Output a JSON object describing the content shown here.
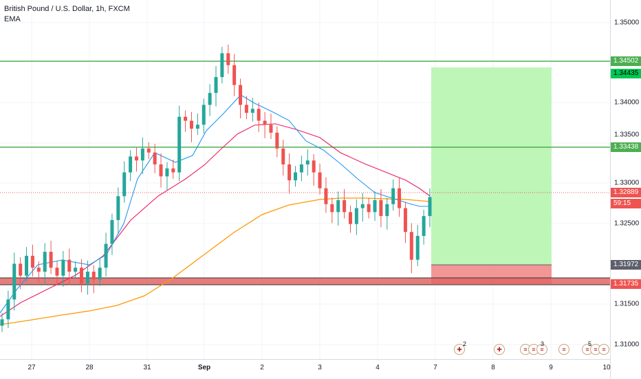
{
  "legend": {
    "title": "British Pound / U.S. Dollar, 1h, FXCM",
    "indicator": "EMA"
  },
  "colors": {
    "up": "#26a69a",
    "down": "#ef5350",
    "ema_fast": "#2196f3",
    "ema_mid": "#e91e63",
    "ema_slow": "#ff9800",
    "h_line": "#4caf50",
    "support_zone": "#e57373",
    "target_zone": "#b9f6b3",
    "stop_zone": "#f28b8b"
  },
  "price_axis": {
    "ticks": [
      "1.35000",
      "1.34000",
      "1.33500",
      "1.33000",
      "1.32500",
      "1.31500",
      "1.31000"
    ],
    "labels": [
      {
        "text": "1.34502",
        "bg": "#4caf50"
      },
      {
        "text": "1.34435",
        "bg": "#00c853"
      },
      {
        "text": "1.33438",
        "bg": "#4caf50"
      },
      {
        "text": "1.32889",
        "bg": "#ef5350"
      },
      {
        "text": "59:15",
        "bg": "#ef5350"
      },
      {
        "text": "1.31972",
        "bg": "#5d606b"
      },
      {
        "text": "1.31735",
        "bg": "#ef5350"
      }
    ]
  },
  "time_axis": {
    "labels": [
      "27",
      "28",
      "31",
      "Sep",
      "2",
      "3",
      "4",
      "7",
      "8",
      "9",
      "10"
    ]
  },
  "events": {
    "counts": [
      "2",
      "3",
      "5"
    ]
  },
  "chart_data": {
    "type": "candlestick",
    "title": "British Pound / U.S. Dollar, 1h, FXCM",
    "indicators": [
      "EMA"
    ],
    "ylim": [
      1.3085,
      1.3537
    ],
    "y_ticks": [
      1.31,
      1.315,
      1.325,
      1.33,
      1.335,
      1.34,
      1.345,
      1.35
    ],
    "horizontal_levels": [
      1.34502,
      1.33438
    ],
    "support_zone": [
      1.3164,
      1.3175
    ],
    "last_price": 1.32889,
    "position": {
      "entry": 1.31972,
      "target": 1.34435,
      "stop": 1.3175
    },
    "x_labels": [
      "27",
      "28",
      "31",
      "Sep",
      "2",
      "3",
      "4",
      "7",
      "8",
      "9",
      "10"
    ],
    "candles_close_path": [
      1.3135,
      1.316,
      1.3205,
      1.319,
      1.3215,
      1.32,
      1.3195,
      1.322,
      1.32,
      1.319,
      1.321,
      1.3195,
      1.32,
      1.318,
      1.3195,
      1.3185,
      1.32,
      1.323,
      1.326,
      1.329,
      1.332,
      1.334,
      1.3335,
      1.335,
      1.3345,
      1.333,
      1.3315,
      1.3325,
      1.332,
      1.339,
      1.3385,
      1.3375,
      1.338,
      1.3405,
      1.342,
      1.344,
      1.347,
      1.3455,
      1.343,
      1.3405,
      1.3395,
      1.34,
      1.3385,
      1.338,
      1.337,
      1.335,
      1.333,
      1.331,
      1.332,
      1.333,
      1.3335,
      1.332,
      1.33,
      1.328,
      1.327,
      1.3285,
      1.327,
      1.3255,
      1.3275,
      1.328,
      1.327,
      1.3285,
      1.3265,
      1.328,
      1.33,
      1.3275,
      1.3245,
      1.321,
      1.324,
      1.3265,
      1.3289
    ]
  }
}
